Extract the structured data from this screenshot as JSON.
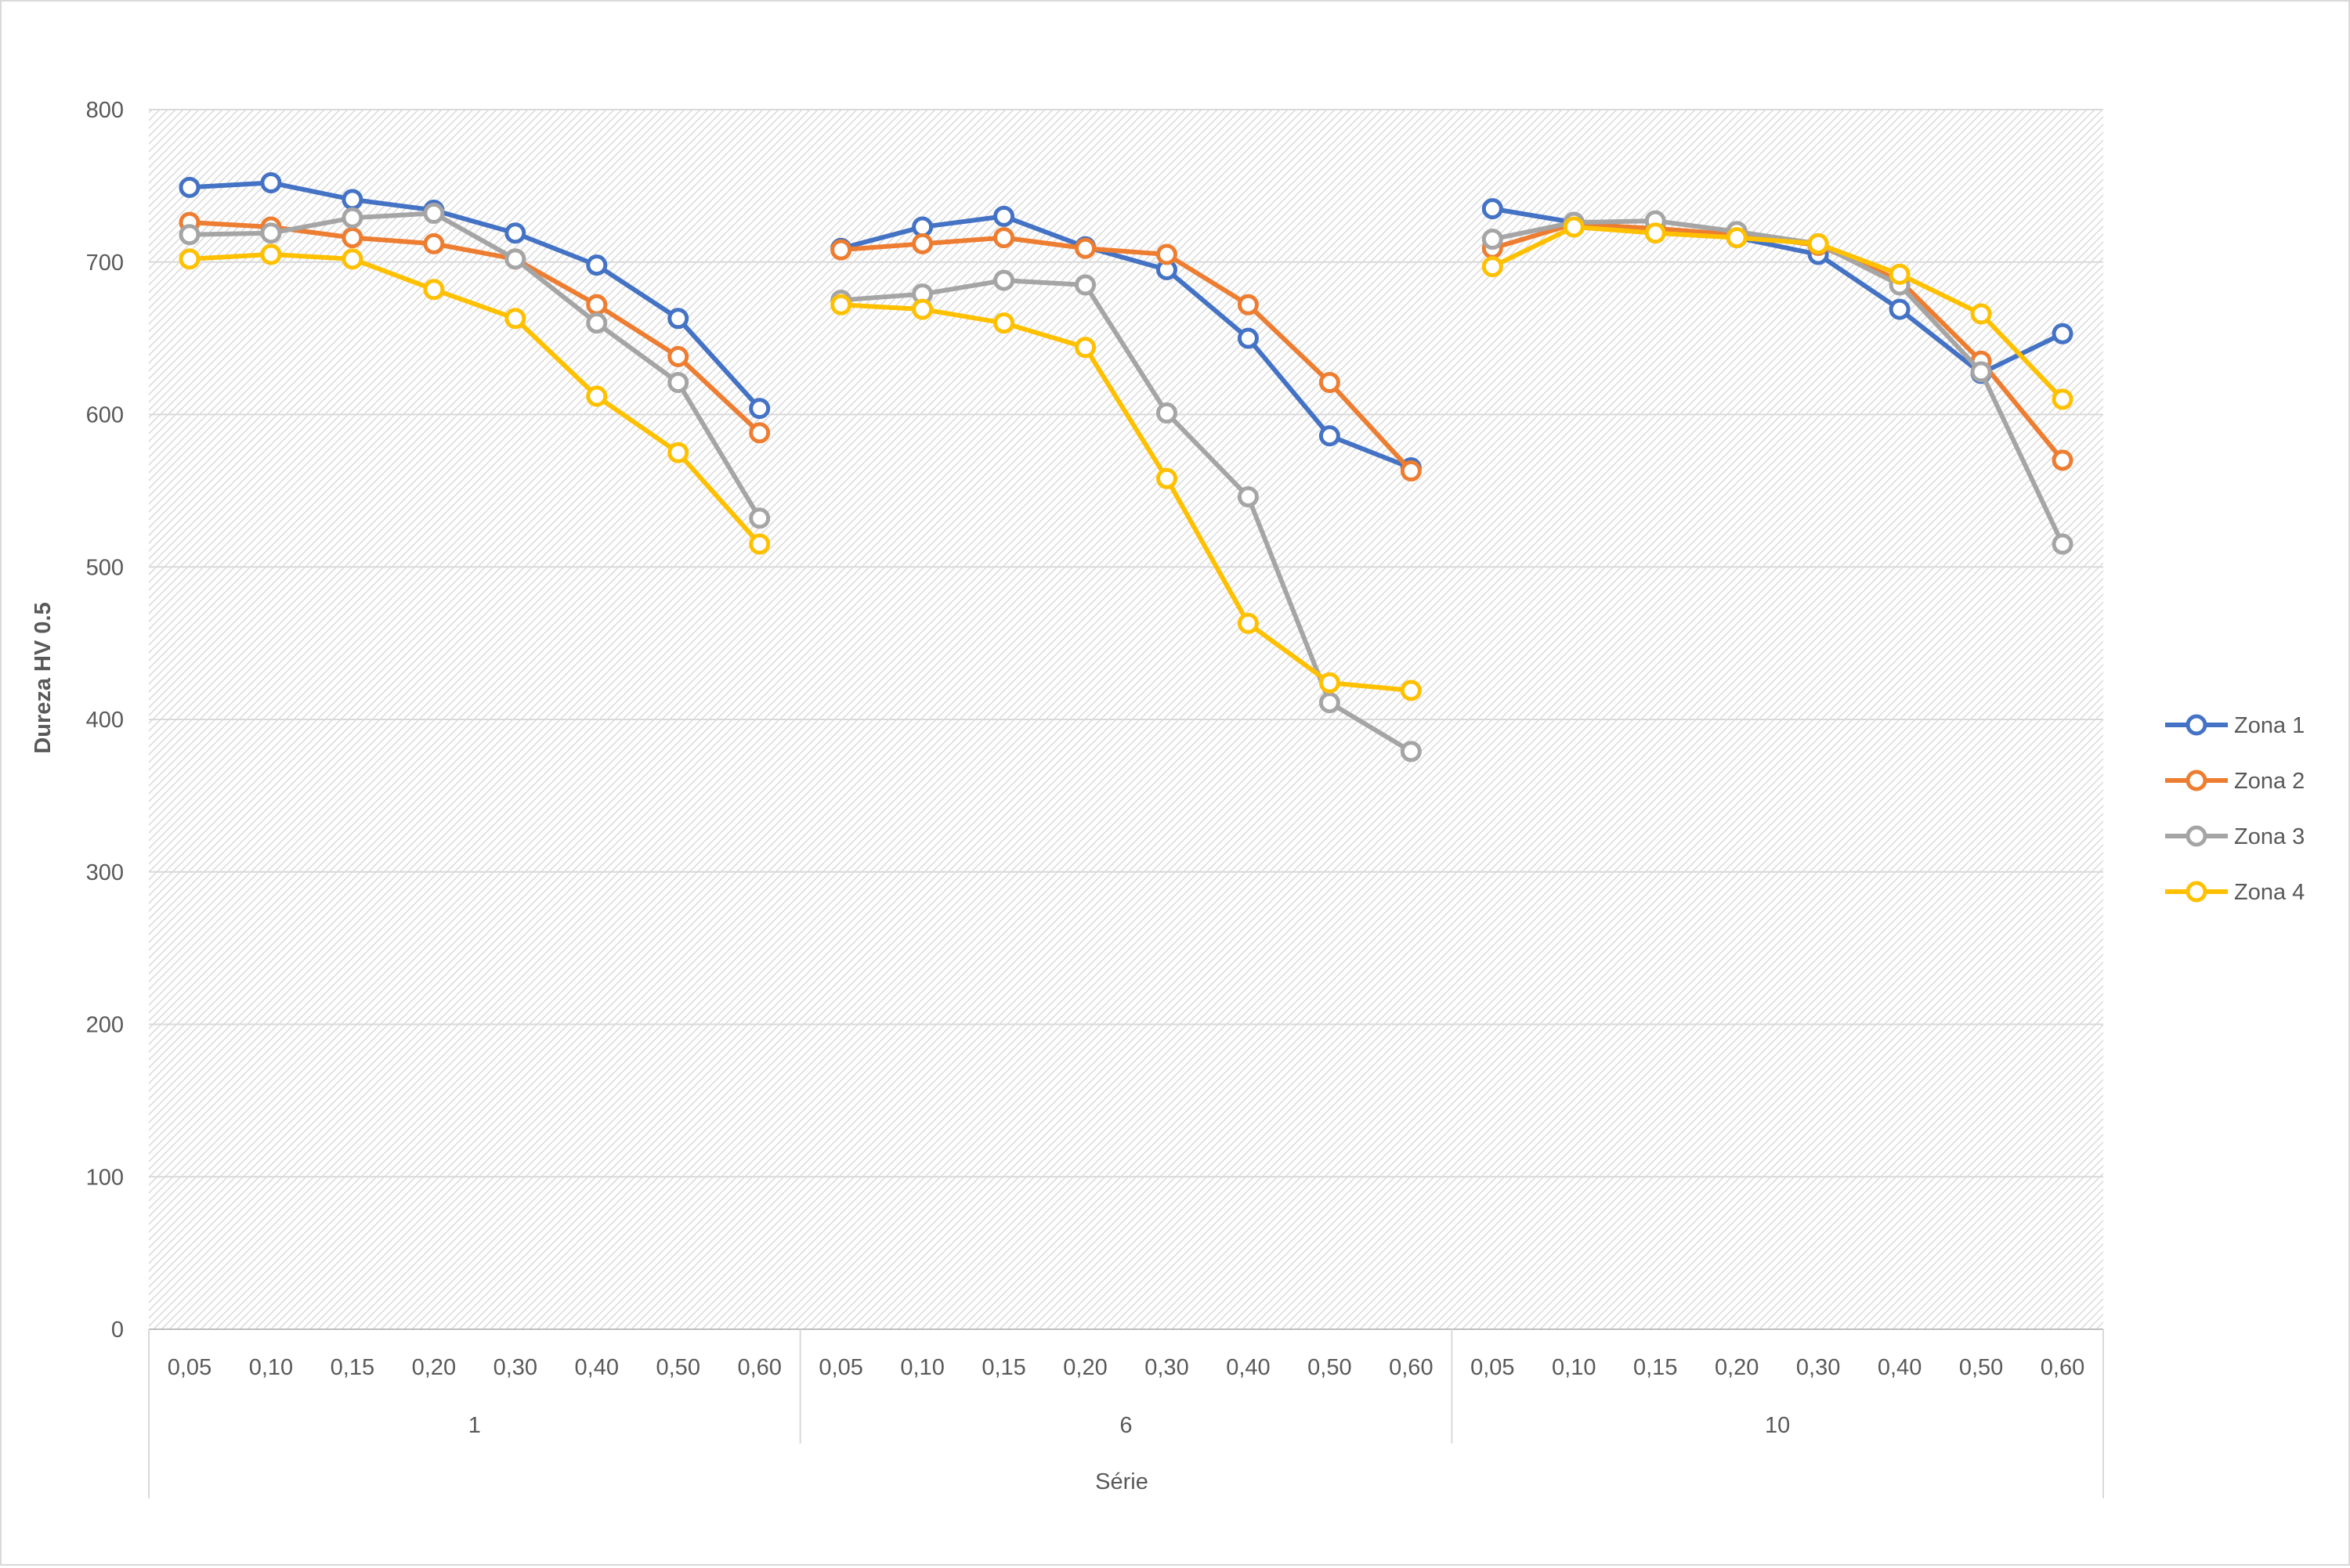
{
  "chart_data": {
    "type": "line",
    "title": "",
    "xlabel": "Série",
    "ylabel": "Dureza HV 0.5",
    "ylim": [
      0,
      800
    ],
    "yticks": [
      0,
      100,
      200,
      300,
      400,
      500,
      600,
      700,
      800
    ],
    "grid": true,
    "legend_position": "right",
    "groups": [
      "1",
      "6",
      "10"
    ],
    "categories": [
      "0,05",
      "0,10",
      "0,15",
      "0,20",
      "0,30",
      "0,40",
      "0,50",
      "0,60"
    ],
    "series": [
      {
        "name": "Zona 1",
        "color": "#4472C4",
        "values": [
          [
            749,
            752,
            741,
            734,
            719,
            698,
            663,
            604
          ],
          [
            709,
            723,
            730,
            710,
            695,
            650,
            586,
            565
          ],
          [
            735,
            726,
            721,
            716,
            705,
            669,
            627,
            653
          ]
        ]
      },
      {
        "name": "Zona 2",
        "color": "#ED7D31",
        "values": [
          [
            726,
            723,
            716,
            712,
            702,
            672,
            638,
            588
          ],
          [
            708,
            712,
            716,
            709,
            705,
            672,
            621,
            563
          ],
          [
            709,
            725,
            722,
            718,
            711,
            688,
            635,
            570
          ]
        ]
      },
      {
        "name": "Zona 3",
        "color": "#A5A5A5",
        "values": [
          [
            718,
            719,
            729,
            732,
            702,
            660,
            621,
            532
          ],
          [
            675,
            679,
            688,
            685,
            601,
            546,
            411,
            379
          ],
          [
            715,
            726,
            727,
            720,
            712,
            685,
            628,
            515
          ]
        ]
      },
      {
        "name": "Zona 4",
        "color": "#FFC000",
        "values": [
          [
            702,
            705,
            702,
            682,
            663,
            612,
            575,
            515
          ],
          [
            672,
            669,
            660,
            644,
            558,
            463,
            424,
            419
          ],
          [
            697,
            723,
            719,
            716,
            712,
            692,
            666,
            610
          ]
        ]
      }
    ]
  }
}
